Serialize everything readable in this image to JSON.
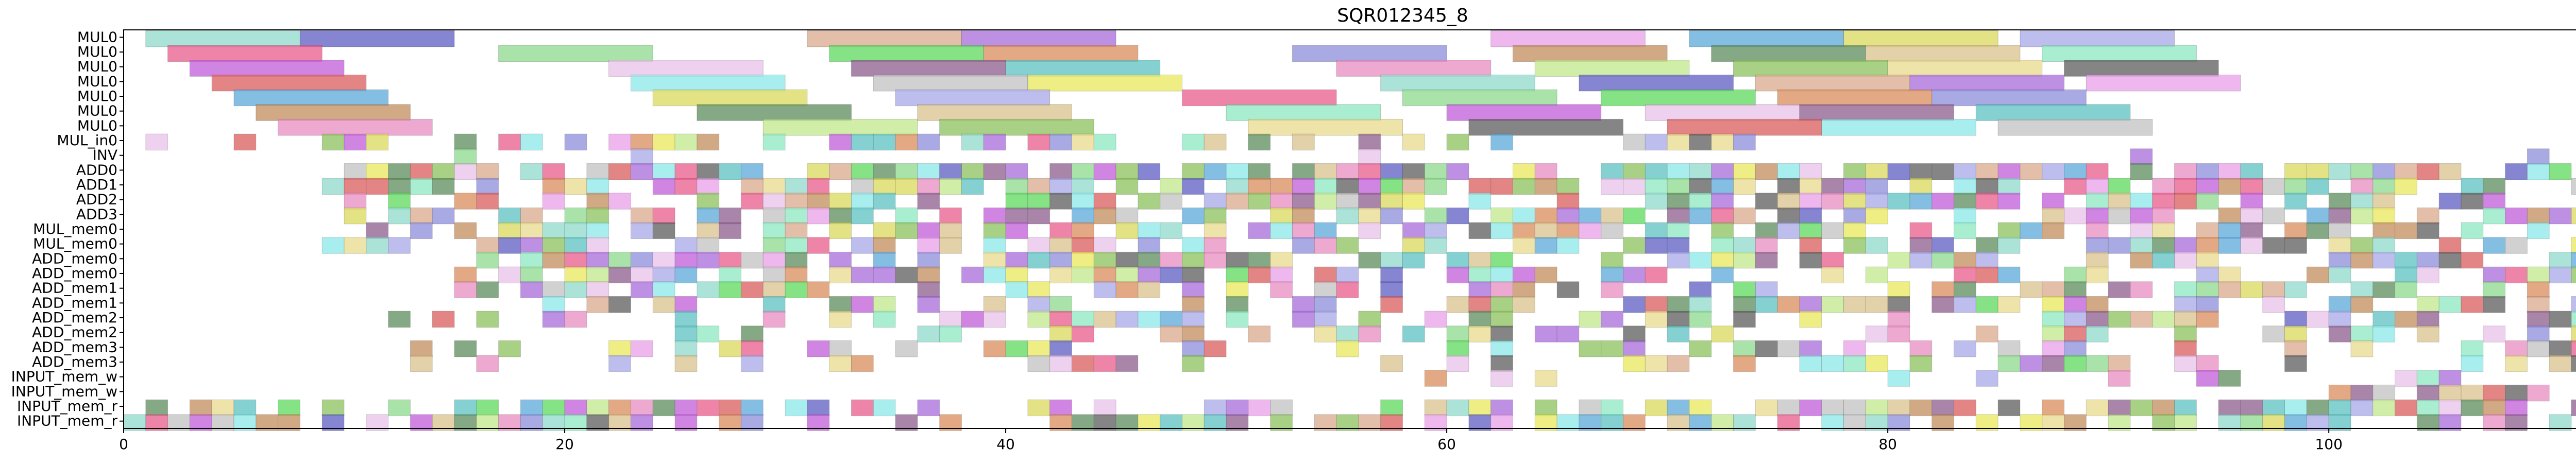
{
  "chart_data": {
    "type": "gantt",
    "title": "SQR012345_8",
    "xlabel": "",
    "ylabel": "",
    "xlim": [
      0,
      116
    ],
    "x_ticks": [
      0,
      20,
      40,
      60,
      80,
      100
    ],
    "grid": false,
    "rows": [
      "MUL0",
      "MUL0",
      "MUL0",
      "MUL0",
      "MUL0",
      "MUL0",
      "MUL0",
      "MUL_in0",
      "INV",
      "ADD0",
      "ADD1",
      "ADD2",
      "ADD3",
      "MUL_mem0",
      "MUL_mem0",
      "ADD_mem0",
      "ADD_mem0",
      "ADD_mem1",
      "ADD_mem1",
      "ADD_mem2",
      "ADD_mem2",
      "ADD_mem3",
      "ADD_mem3",
      "INPUT_mem_w",
      "INPUT_mem_w",
      "INPUT_mem_r",
      "INPUT_mem_r"
    ],
    "palette": [
      "#8fd9cc",
      "#5c5cc2",
      "#d9a88c",
      "#a86bd9",
      "#e8a0e8",
      "#5ca8d9",
      "#d9d95c",
      "#a8a8e8",
      "#e85c8c",
      "#8cd98c",
      "#5cd95c",
      "#d98c5c",
      "#8c8cd9",
      "#c28c5c",
      "#5c8c5c",
      "#d9c28c",
      "#8ce8c2",
      "#c25cd9",
      "#e8c2e8",
      "#8c5c8c",
      "#5cc2c2",
      "#e88cc2",
      "#c2e88c",
      "#8cc25c",
      "#e8d98c",
      "#5c5c5c",
      "#d95c5c",
      "#8ce8e8",
      "#c2c2c2",
      "#e8e85c"
    ],
    "bars": [
      {
        "row": 0,
        "start": 1,
        "end": 8
      },
      {
        "row": 0,
        "start": 8,
        "end": 15
      },
      {
        "row": 0,
        "start": 31,
        "end": 38
      },
      {
        "row": 0,
        "start": 38,
        "end": 45
      },
      {
        "row": 0,
        "start": 62,
        "end": 69
      },
      {
        "row": 0,
        "start": 71,
        "end": 78
      },
      {
        "row": 0,
        "start": 78,
        "end": 85
      },
      {
        "row": 0,
        "start": 86,
        "end": 93
      },
      {
        "row": 1,
        "start": 2,
        "end": 9
      },
      {
        "row": 1,
        "start": 17,
        "end": 24
      },
      {
        "row": 1,
        "start": 32,
        "end": 39
      },
      {
        "row": 1,
        "start": 39,
        "end": 46
      },
      {
        "row": 1,
        "start": 53,
        "end": 60
      },
      {
        "row": 1,
        "start": 63,
        "end": 70
      },
      {
        "row": 1,
        "start": 72,
        "end": 79
      },
      {
        "row": 1,
        "start": 79,
        "end": 86
      },
      {
        "row": 1,
        "start": 87,
        "end": 94
      },
      {
        "row": 2,
        "start": 3,
        "end": 10
      },
      {
        "row": 2,
        "start": 22,
        "end": 29
      },
      {
        "row": 2,
        "start": 33,
        "end": 40
      },
      {
        "row": 2,
        "start": 40,
        "end": 47
      },
      {
        "row": 2,
        "start": 55,
        "end": 62
      },
      {
        "row": 2,
        "start": 64,
        "end": 71
      },
      {
        "row": 2,
        "start": 73,
        "end": 80
      },
      {
        "row": 2,
        "start": 80,
        "end": 87
      },
      {
        "row": 2,
        "start": 88,
        "end": 95
      },
      {
        "row": 3,
        "start": 4,
        "end": 11
      },
      {
        "row": 3,
        "start": 23,
        "end": 30
      },
      {
        "row": 3,
        "start": 34,
        "end": 41
      },
      {
        "row": 3,
        "start": 41,
        "end": 48
      },
      {
        "row": 3,
        "start": 57,
        "end": 64
      },
      {
        "row": 3,
        "start": 66,
        "end": 73
      },
      {
        "row": 3,
        "start": 74,
        "end": 81
      },
      {
        "row": 3,
        "start": 81,
        "end": 88
      },
      {
        "row": 3,
        "start": 89,
        "end": 96
      },
      {
        "row": 4,
        "start": 5,
        "end": 12
      },
      {
        "row": 4,
        "start": 24,
        "end": 31
      },
      {
        "row": 4,
        "start": 35,
        "end": 42
      },
      {
        "row": 4,
        "start": 48,
        "end": 55
      },
      {
        "row": 4,
        "start": 58,
        "end": 65
      },
      {
        "row": 4,
        "start": 67,
        "end": 74
      },
      {
        "row": 4,
        "start": 75,
        "end": 82
      },
      {
        "row": 4,
        "start": 82,
        "end": 89
      },
      {
        "row": 5,
        "start": 6,
        "end": 13
      },
      {
        "row": 5,
        "start": 26,
        "end": 33
      },
      {
        "row": 5,
        "start": 36,
        "end": 43
      },
      {
        "row": 5,
        "start": 50,
        "end": 57
      },
      {
        "row": 5,
        "start": 60,
        "end": 67
      },
      {
        "row": 5,
        "start": 69,
        "end": 76
      },
      {
        "row": 5,
        "start": 76,
        "end": 83
      },
      {
        "row": 5,
        "start": 84,
        "end": 91
      },
      {
        "row": 6,
        "start": 7,
        "end": 14
      },
      {
        "row": 6,
        "start": 29,
        "end": 36
      },
      {
        "row": 6,
        "start": 37,
        "end": 44
      },
      {
        "row": 6,
        "start": 51,
        "end": 58
      },
      {
        "row": 6,
        "start": 61,
        "end": 68
      },
      {
        "row": 6,
        "start": 70,
        "end": 77
      },
      {
        "row": 6,
        "start": 77,
        "end": 84
      },
      {
        "row": 6,
        "start": 85,
        "end": 92
      }
    ]
  }
}
